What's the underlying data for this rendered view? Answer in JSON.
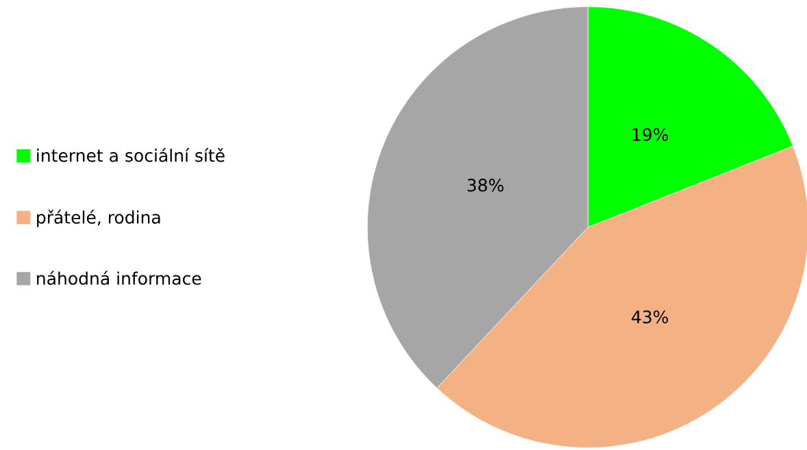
{
  "chart_data": {
    "type": "pie",
    "categories": [
      "internet a sociální sítě",
      "přátelé, rodina",
      "náhodná informace"
    ],
    "values": [
      19,
      43,
      38
    ],
    "colors": [
      "#00ff00",
      "#f4b183",
      "#a6a6a6"
    ],
    "value_labels": [
      "19%",
      "43%",
      "38%"
    ],
    "legend": "left"
  }
}
